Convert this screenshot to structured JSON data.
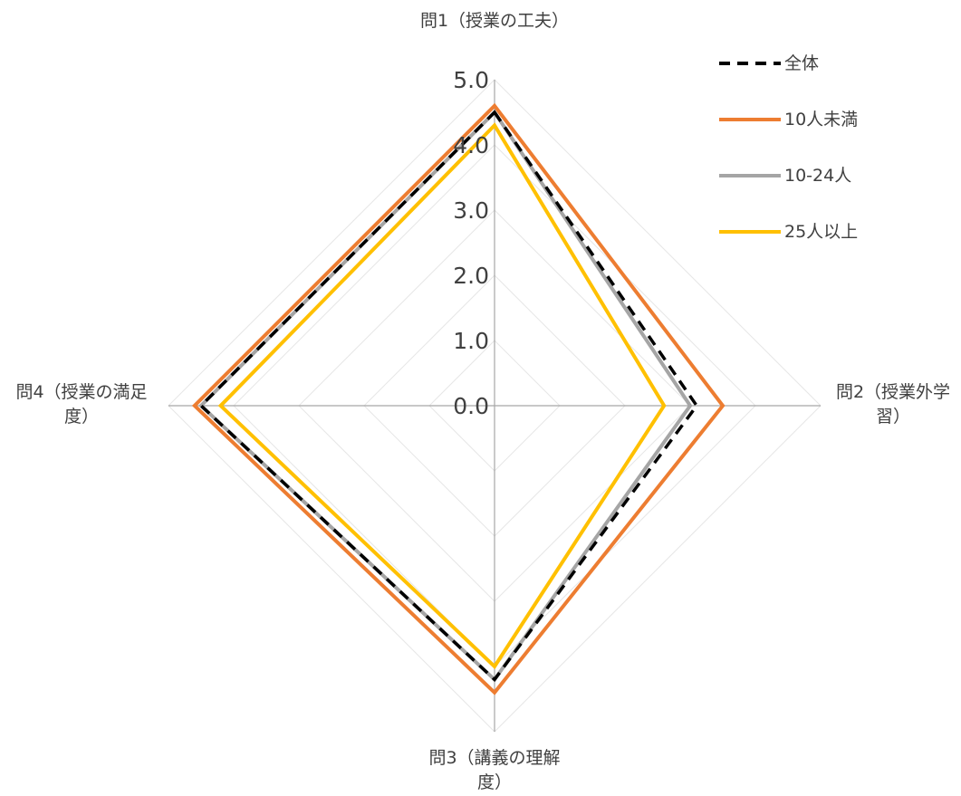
{
  "chart_data": {
    "type": "radar",
    "axes": [
      "問1（授業の工夫）",
      "問2（授業外学習）",
      "問3（講義の理解度）",
      "問4（授業の満足度）"
    ],
    "rlim": [
      0,
      5
    ],
    "ticks": [
      "0.0",
      "1.0",
      "2.0",
      "3.0",
      "4.0",
      "5.0"
    ],
    "grid": true,
    "legend_position": "top-right",
    "series": [
      {
        "name": "全体",
        "values": [
          4.5,
          3.1,
          4.2,
          4.5
        ],
        "color": "#000000",
        "dashed": true
      },
      {
        "name": "10人未満",
        "values": [
          4.6,
          3.5,
          4.4,
          4.6
        ],
        "color": "#ED7D31",
        "dashed": false
      },
      {
        "name": "10-24人",
        "values": [
          4.5,
          3.0,
          4.2,
          4.5
        ],
        "color": "#A5A5A5",
        "dashed": false
      },
      {
        "name": "25人以上",
        "values": [
          4.3,
          2.6,
          4.0,
          4.2
        ],
        "color": "#FFC000",
        "dashed": false
      }
    ]
  }
}
